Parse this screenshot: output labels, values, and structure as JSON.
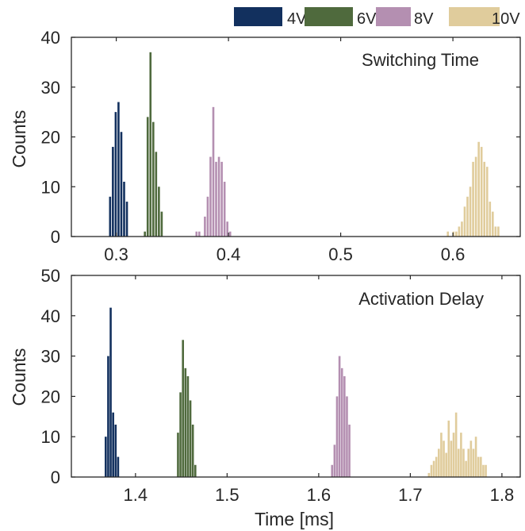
{
  "legend": [
    "4V",
    "6V",
    "8V",
    "10V"
  ],
  "colors": {
    "4V": "#12305e",
    "6V": "#4f6a3d",
    "8V": "#b48fb1",
    "10V": "#e0cc9c"
  },
  "chart_data": [
    {
      "type": "bar",
      "annotation": "Switching Time",
      "xlabel": "",
      "ylabel": "Counts",
      "xlim": [
        0.26,
        0.66
      ],
      "ylim": [
        0,
        40
      ],
      "xticks": [
        0.3,
        0.4,
        0.5,
        0.6
      ],
      "xtick_labels": [
        "0.3",
        "0.4",
        "0.5",
        "0.6"
      ],
      "yticks": [
        0,
        10,
        20,
        30,
        40
      ],
      "ytick_labels": [
        "0",
        "10",
        "20",
        "30",
        "40"
      ],
      "series": [
        {
          "name": "4V",
          "x": [
            0.2945,
            0.297,
            0.2995,
            0.302,
            0.3045,
            0.307,
            0.3095
          ],
          "values": [
            8,
            18,
            25,
            27,
            21,
            11,
            7
          ]
        },
        {
          "name": "6V",
          "x": [
            0.3255,
            0.328,
            0.3305,
            0.333,
            0.3355,
            0.338,
            0.3405,
            0.343
          ],
          "values": [
            1,
            24,
            37,
            23,
            17,
            10,
            5,
            0
          ]
        },
        {
          "name": "8V",
          "x": [
            0.369,
            0.3715,
            0.374,
            0.3765,
            0.379,
            0.3815,
            0.384,
            0.3865,
            0.389,
            0.3915,
            0.394,
            0.3965,
            0.399,
            0.4015,
            0.404
          ],
          "values": [
            0,
            1,
            1,
            0,
            4,
            8,
            16,
            26,
            15,
            16,
            15,
            11,
            3,
            1,
            0
          ]
        },
        {
          "name": "10V",
          "x": [
            0.593,
            0.5955,
            0.598,
            0.6005,
            0.603,
            0.6055,
            0.608,
            0.6105,
            0.613,
            0.6155,
            0.618,
            0.6205,
            0.623,
            0.6255,
            0.628,
            0.6305,
            0.633,
            0.6355,
            0.638,
            0.6405
          ],
          "values": [
            0,
            1,
            0,
            1,
            1,
            2,
            3,
            6,
            8,
            10,
            15,
            16,
            19,
            18,
            15,
            14,
            7,
            5,
            2,
            2
          ]
        }
      ]
    },
    {
      "type": "bar",
      "annotation": "Activation Delay",
      "xlabel": "Time [ms]",
      "ylabel": "Counts",
      "xlim": [
        1.33,
        1.82
      ],
      "ylim": [
        0,
        50
      ],
      "xticks": [
        1.4,
        1.5,
        1.6,
        1.7,
        1.8
      ],
      "xtick_labels": [
        "1.4",
        "1.5",
        "1.6",
        "1.7",
        "1.8"
      ],
      "yticks": [
        0,
        10,
        20,
        30,
        40,
        50
      ],
      "ytick_labels": [
        "0",
        "10",
        "20",
        "30",
        "40",
        "50"
      ],
      "series": [
        {
          "name": "4V",
          "x": [
            1.3675,
            1.3702,
            1.3729,
            1.3756,
            1.3783,
            1.381
          ],
          "values": [
            10,
            30,
            42,
            16,
            13,
            5
          ]
        },
        {
          "name": "6V",
          "x": [
            1.4437,
            1.4464,
            1.4491,
            1.4518,
            1.4545,
            1.4572,
            1.4599,
            1.4626,
            1.4653
          ],
          "values": [
            0,
            11,
            21,
            34,
            27,
            25,
            19,
            13,
            3
          ]
        },
        {
          "name": "8V",
          "x": [
            1.6092,
            1.6119,
            1.6146,
            1.6173,
            1.62,
            1.6227,
            1.6254,
            1.6281,
            1.6308,
            1.6335
          ],
          "values": [
            0,
            0,
            3,
            8,
            20,
            30,
            27,
            25,
            20,
            13
          ]
        },
        {
          "name": "10V",
          "x": [
            1.7203,
            1.723,
            1.7257,
            1.7284,
            1.7311,
            1.7338,
            1.7365,
            1.7392,
            1.7419,
            1.7446,
            1.7473,
            1.75,
            1.7527,
            1.7554,
            1.7581,
            1.7608,
            1.7635,
            1.7662,
            1.7689,
            1.7716,
            1.7743,
            1.777,
            1.7797,
            1.7824
          ],
          "values": [
            1,
            3,
            4,
            5,
            7,
            11,
            9,
            6,
            14,
            9,
            11,
            16,
            7,
            11,
            7,
            4,
            7,
            9,
            7,
            10,
            5,
            5,
            3,
            3
          ]
        }
      ]
    }
  ]
}
